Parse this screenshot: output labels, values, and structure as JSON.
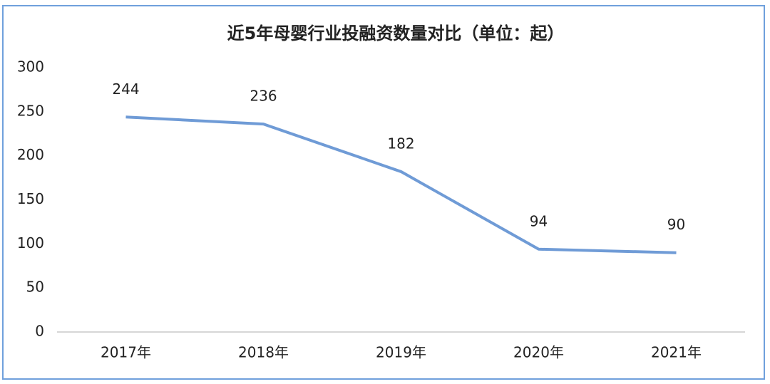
{
  "chart_data": {
    "type": "line",
    "title": "近5年母婴行业投融资数量对比（单位：起）",
    "categories": [
      "2017年",
      "2018年",
      "2019年",
      "2020年",
      "2021年"
    ],
    "values": [
      244,
      236,
      182,
      94,
      90
    ],
    "color": "#6f9bd6",
    "ylim": [
      0,
      300
    ],
    "yticks": [
      0,
      50,
      100,
      150,
      200,
      250,
      300
    ],
    "grid": false,
    "data_labels": true
  }
}
